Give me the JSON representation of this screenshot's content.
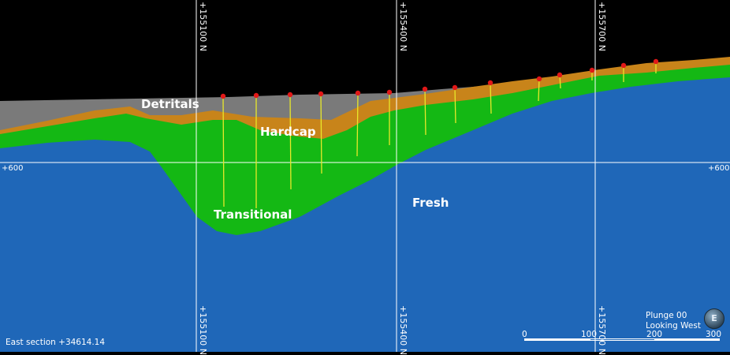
{
  "grid": {
    "vertical_lines": [
      "+155100 N",
      "+155400 N",
      "+155700 N"
    ],
    "horizontal_label": "+600"
  },
  "zones": {
    "detritals": "Detritals",
    "hardcap": "Hardcap",
    "transitional": "Transitional",
    "fresh": "Fresh"
  },
  "section_label": "East section +34614.14",
  "view": {
    "plunge": "Plunge 00",
    "looking": "Looking West",
    "compass_letter": "E"
  },
  "scale": {
    "ticks": [
      "0",
      "100",
      "200",
      "300"
    ]
  },
  "colors": {
    "sky": "#000000",
    "detritals": "#7a7a7a",
    "hardcap": "#c8841a",
    "transitional": "#14b814",
    "fresh": "#1f67b8",
    "drillhole": "#e8e82a",
    "collar": "#e01818",
    "grid": "#ffffff"
  },
  "drillholes": 15
}
